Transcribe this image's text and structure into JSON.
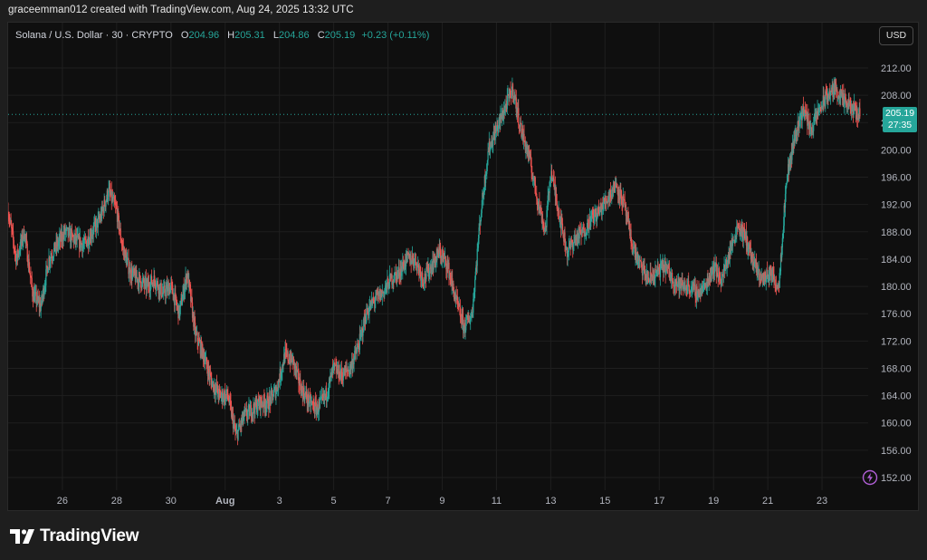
{
  "credit": "graceemman012 created with TradingView.com, Aug 24, 2025 13:32 UTC",
  "legend": {
    "symbol": "Solana / U.S. Dollar · 30 · CRYPTO",
    "open_label": "O",
    "open": "204.96",
    "high_label": "H",
    "high": "205.31",
    "low_label": "L",
    "low": "204.86",
    "close_label": "C",
    "close": "205.19",
    "change": "+0.23 (+0.11%)"
  },
  "currency_button": "USD",
  "price_tag": {
    "price": "205.19",
    "countdown": "27:35"
  },
  "brand": {
    "name": "TradingView",
    "logo": "tradingview-logo"
  },
  "icons": {
    "lightning": "lightning-icon"
  },
  "colors": {
    "up": "#26a69a",
    "down": "#ef5350",
    "background": "#0f0f0f",
    "grid": "#1f1f1f",
    "axis_text": "#b2b5be",
    "price_line": "#26a69a",
    "lightning": "#b05fd6"
  },
  "chart_data": {
    "type": "candlestick",
    "title": "Solana / U.S. Dollar · 30 · CRYPTO",
    "xlabel": "",
    "ylabel": "",
    "ylim": [
      149,
      215
    ],
    "grid": true,
    "y_ticks": [
      "212.00",
      "208.00",
      "204.00",
      "200.00",
      "196.00",
      "192.00",
      "188.00",
      "184.00",
      "180.00",
      "176.00",
      "172.00",
      "168.00",
      "164.00",
      "160.00",
      "156.00",
      "152.00"
    ],
    "y_tick_values": [
      212,
      208,
      204,
      200,
      196,
      192,
      188,
      184,
      180,
      176,
      172,
      168,
      164,
      160,
      156,
      152
    ],
    "x_ticks": [
      "26",
      "28",
      "30",
      "Aug",
      "3",
      "5",
      "7",
      "9",
      "11",
      "13",
      "15",
      "17",
      "19",
      "21",
      "23"
    ],
    "x_tick_days": [
      26,
      28,
      30,
      32,
      34,
      36,
      38,
      40,
      42,
      44,
      46,
      48,
      50,
      52,
      54
    ],
    "x_range_days": [
      24.0,
      55.7
    ],
    "x_note_days": "days counted from Jul 0 (Aug 1 = 32)",
    "last_price": 205.19,
    "series": [
      {
        "name": "SOL/USD",
        "x": [
          24.0,
          24.3,
          24.6,
          24.9,
          25.2,
          25.5,
          25.8,
          26.1,
          26.4,
          26.8,
          27.1,
          27.4,
          27.7,
          28.0,
          28.2,
          28.5,
          28.8,
          29.1,
          29.4,
          29.7,
          30.0,
          30.3,
          30.6,
          30.9,
          31.2,
          31.5,
          31.8,
          32.1,
          32.4,
          32.7,
          33.0,
          33.3,
          33.6,
          33.9,
          34.2,
          34.5,
          34.8,
          35.1,
          35.4,
          35.7,
          36.0,
          36.3,
          36.6,
          36.9,
          37.2,
          37.5,
          37.8,
          38.1,
          38.4,
          38.7,
          39.0,
          39.3,
          39.6,
          39.9,
          40.2,
          40.5,
          40.8,
          41.1,
          41.4,
          41.7,
          42.0,
          42.3,
          42.6,
          42.9,
          43.2,
          43.5,
          43.8,
          44.0,
          44.3,
          44.6,
          44.9,
          45.2,
          45.5,
          45.8,
          46.1,
          46.4,
          46.7,
          47.0,
          47.3,
          47.6,
          47.9,
          48.2,
          48.5,
          48.8,
          49.1,
          49.4,
          49.7,
          50.0,
          50.3,
          50.6,
          50.9,
          51.2,
          51.5,
          51.8,
          52.1,
          52.4,
          52.7,
          53.0,
          53.3,
          53.6,
          53.9,
          54.2,
          54.5,
          54.8,
          55.1,
          55.4
        ],
        "y": [
          191,
          184,
          188,
          179,
          177,
          184,
          186,
          188,
          187,
          186,
          188,
          190,
          194,
          191,
          186,
          182,
          181,
          180,
          181,
          179,
          180,
          176,
          182,
          173,
          170,
          166,
          164,
          164,
          158,
          161,
          162,
          163,
          163,
          165,
          170,
          169,
          165,
          163,
          162,
          164,
          168,
          167,
          168,
          171,
          176,
          178,
          179,
          181,
          182,
          184,
          184,
          181,
          183,
          185,
          183,
          178,
          174,
          176,
          190,
          200,
          203,
          206,
          209,
          203,
          199,
          193,
          188,
          197,
          191,
          185,
          187,
          188,
          190,
          191,
          193,
          195,
          192,
          186,
          183,
          181,
          182,
          183,
          181,
          180,
          180,
          179,
          180,
          183,
          181,
          185,
          189,
          187,
          183,
          181,
          182,
          180,
          196,
          202,
          206,
          203,
          206,
          208,
          209,
          207,
          206,
          205.19
        ]
      }
    ]
  }
}
